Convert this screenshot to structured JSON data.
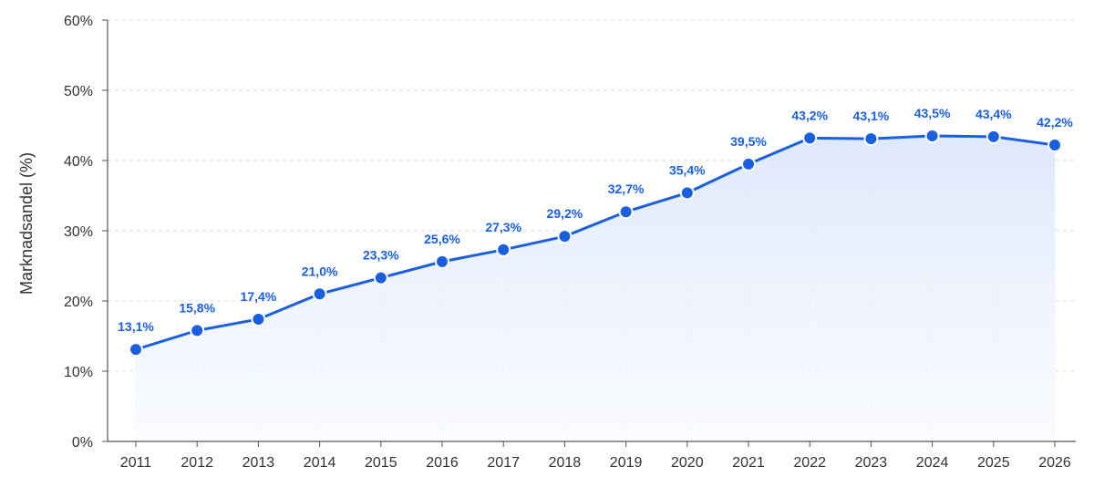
{
  "chart_data": {
    "type": "line",
    "title": "",
    "xlabel": "",
    "ylabel": "Marknadsandel (%)",
    "categories": [
      "2011",
      "2012",
      "2013",
      "2014",
      "2015",
      "2016",
      "2017",
      "2018",
      "2019",
      "2020",
      "2021",
      "2022",
      "2023",
      "2024",
      "2025",
      "2026"
    ],
    "series": [
      {
        "values": [
          13.1,
          15.8,
          17.4,
          21.0,
          23.3,
          25.6,
          27.3,
          29.2,
          32.7,
          35.4,
          39.5,
          43.2,
          43.1,
          43.5,
          43.4,
          42.2
        ],
        "labels": [
          "13,1%",
          "15,8%",
          "17,4%",
          "21,0%",
          "23,3%",
          "25,6%",
          "27,3%",
          "29,2%",
          "32,7%",
          "35,4%",
          "39,5%",
          "43,2%",
          "43,1%",
          "43,5%",
          "43,4%",
          "42,2%"
        ]
      }
    ],
    "ylim": [
      0,
      60
    ],
    "yticks": [
      0,
      10,
      20,
      30,
      40,
      50,
      60
    ],
    "ytick_labels": [
      "0%",
      "10%",
      "20%",
      "30%",
      "40%",
      "50%",
      "60%"
    ],
    "grid": true,
    "area_fill": true,
    "colors": {
      "line": "#1a5fe0",
      "marker": "#1a5fe0",
      "label": "#1a5fe0",
      "area_top": "#dce7fb",
      "area_bottom": "#f6f9fe",
      "axis": "#555555"
    }
  }
}
